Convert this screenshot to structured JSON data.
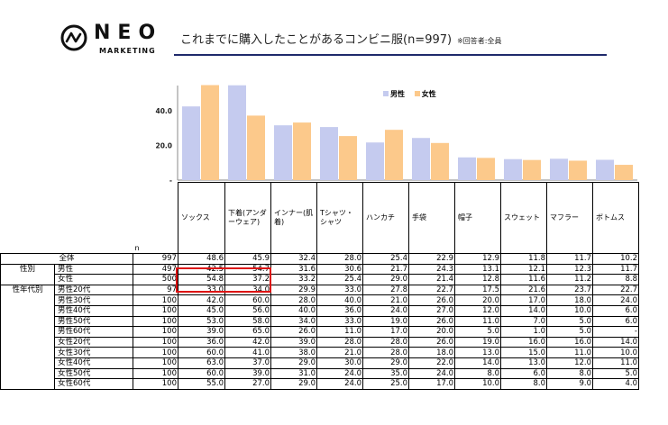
{
  "header": {
    "logo_text": "NEO",
    "logo_sub": "MARKETING",
    "title": "これまでに購入したことがあるコンビニ服(n=997)",
    "respondents": "※回答者:全員"
  },
  "colors": {
    "male": "#c5cbef",
    "female": "#fcc98b",
    "highlight": "#dd1111",
    "title_line": "#1f2a6b"
  },
  "chart_data": {
    "type": "bar",
    "categories": [
      "ソックス",
      "下着(アンダーウェア)",
      "インナー(肌着)",
      "Tシャツ・シャツ",
      "ハンカチ",
      "手袋",
      "帽子",
      "スウェット",
      "マフラー",
      "ボトムス"
    ],
    "series": [
      {
        "name": "男性",
        "values": [
          42.5,
          54.7,
          31.6,
          30.6,
          21.7,
          24.3,
          13.1,
          12.1,
          12.3,
          11.7
        ]
      },
      {
        "name": "女性",
        "values": [
          54.8,
          37.2,
          33.2,
          25.4,
          29.0,
          21.4,
          12.8,
          11.6,
          11.2,
          8.8
        ]
      }
    ],
    "y_ticks": [
      "40.0",
      "20.0",
      "-"
    ],
    "ylim": [
      0,
      56
    ],
    "legend_position": "top-right"
  },
  "table": {
    "n_label": "n",
    "total": {
      "label": "全体",
      "n": "997",
      "values": [
        "48.6",
        "45.9",
        "32.4",
        "28.0",
        "25.4",
        "22.9",
        "12.9",
        "11.8",
        "11.7",
        "10.2"
      ]
    },
    "groups": [
      {
        "label": "性別",
        "rows": [
          {
            "label": "男性",
            "n": "497",
            "values": [
              "42.5",
              "54.7",
              "31.6",
              "30.6",
              "21.7",
              "24.3",
              "13.1",
              "12.1",
              "12.3",
              "11.7"
            ]
          },
          {
            "label": "女性",
            "n": "500",
            "values": [
              "54.8",
              "37.2",
              "33.2",
              "25.4",
              "29.0",
              "21.4",
              "12.8",
              "11.6",
              "11.2",
              "8.8"
            ]
          }
        ]
      },
      {
        "label": "性年代別",
        "rows": [
          {
            "label": "男性20代",
            "n": "97",
            "values": [
              "33.0",
              "34.0",
              "29.9",
              "33.0",
              "27.8",
              "22.7",
              "17.5",
              "21.6",
              "23.7",
              "22.7"
            ]
          },
          {
            "label": "男性30代",
            "n": "100",
            "values": [
              "42.0",
              "60.0",
              "28.0",
              "40.0",
              "21.0",
              "26.0",
              "20.0",
              "17.0",
              "18.0",
              "24.0"
            ]
          },
          {
            "label": "男性40代",
            "n": "100",
            "values": [
              "45.0",
              "56.0",
              "40.0",
              "36.0",
              "24.0",
              "27.0",
              "12.0",
              "14.0",
              "10.0",
              "6.0"
            ]
          },
          {
            "label": "男性50代",
            "n": "100",
            "values": [
              "53.0",
              "58.0",
              "34.0",
              "33.0",
              "19.0",
              "26.0",
              "11.0",
              "7.0",
              "5.0",
              "6.0"
            ]
          },
          {
            "label": "男性60代",
            "n": "100",
            "values": [
              "39.0",
              "65.0",
              "26.0",
              "11.0",
              "17.0",
              "20.0",
              "5.0",
              "1.0",
              "5.0",
              "-"
            ]
          },
          {
            "label": "女性20代",
            "n": "100",
            "values": [
              "36.0",
              "42.0",
              "39.0",
              "28.0",
              "28.0",
              "26.0",
              "19.0",
              "16.0",
              "16.0",
              "14.0"
            ]
          },
          {
            "label": "女性30代",
            "n": "100",
            "values": [
              "60.0",
              "41.0",
              "38.0",
              "21.0",
              "28.0",
              "18.0",
              "13.0",
              "15.0",
              "11.0",
              "10.0"
            ]
          },
          {
            "label": "女性40代",
            "n": "100",
            "values": [
              "63.0",
              "37.0",
              "29.0",
              "30.0",
              "29.0",
              "22.0",
              "14.0",
              "13.0",
              "12.0",
              "11.0"
            ]
          },
          {
            "label": "女性50代",
            "n": "100",
            "values": [
              "60.0",
              "39.0",
              "31.0",
              "24.0",
              "35.0",
              "24.0",
              "8.0",
              "6.0",
              "8.0",
              "5.0"
            ]
          },
          {
            "label": "女性60代",
            "n": "100",
            "values": [
              "55.0",
              "27.0",
              "29.0",
              "24.0",
              "25.0",
              "17.0",
              "10.0",
              "8.0",
              "9.0",
              "4.0"
            ]
          }
        ]
      }
    ]
  }
}
